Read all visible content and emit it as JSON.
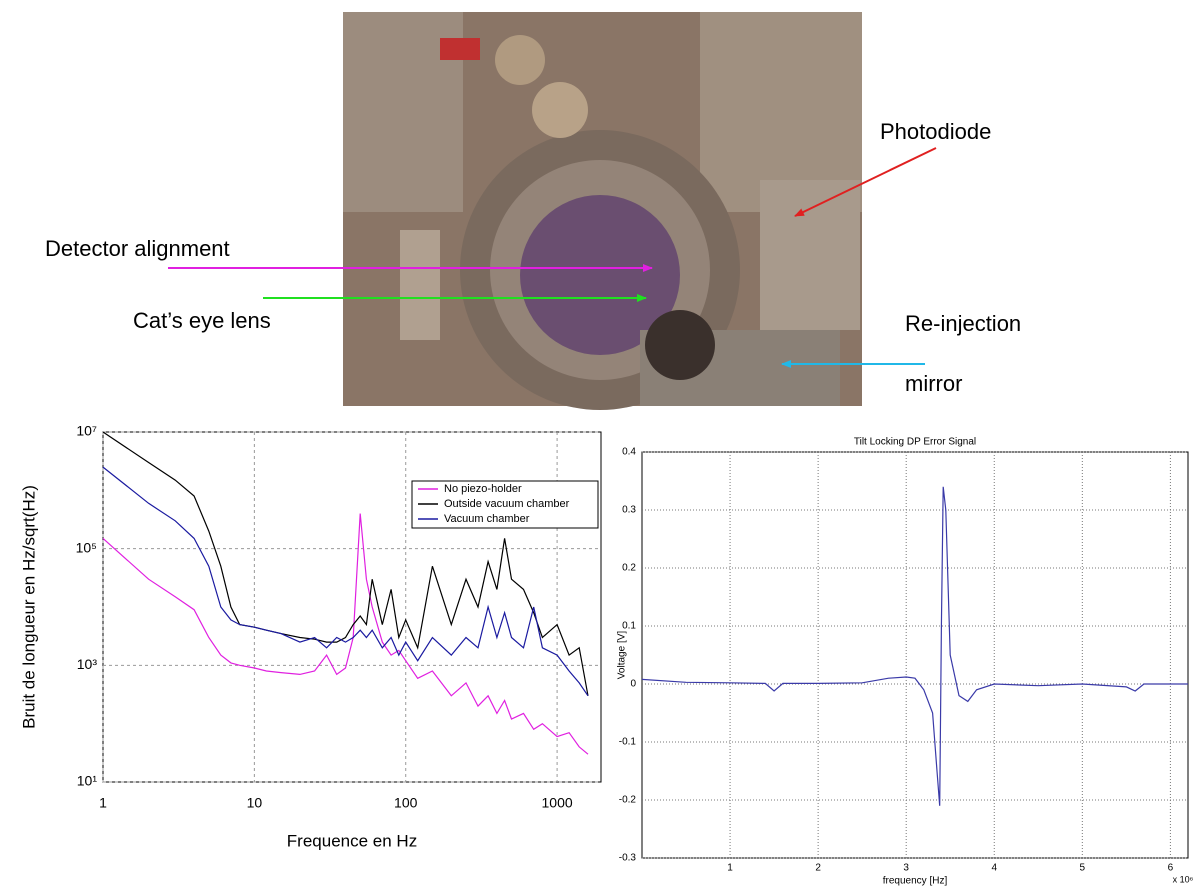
{
  "annotations": [
    "Photodiode",
    "Detector alignment",
    "Cat’s eye lens",
    "Re-injection",
    "mirror"
  ],
  "chart_data": [
    {
      "type": "line",
      "log_x": true,
      "log_y": true,
      "grid": true,
      "legend": "upper right",
      "xlabel": "Frequence en Hz",
      "ylabel": "Bruit de longueur en Hz/sqrt(Hz)",
      "x": [
        1,
        2,
        3,
        4,
        5,
        6,
        7,
        8,
        10,
        12,
        15,
        20,
        25,
        30,
        35,
        40,
        45,
        50,
        55,
        60,
        70,
        80,
        90,
        100,
        120,
        150,
        200,
        250,
        300,
        350,
        400,
        450,
        500,
        600,
        700,
        800,
        1000,
        1200,
        1400,
        1600
      ],
      "xlim": [
        1,
        1950
      ],
      "xticks": [
        1,
        10,
        100,
        1000
      ],
      "ylim": [
        10,
        10000000
      ],
      "yticks": [
        {
          "value": 10,
          "label": "10¹"
        },
        {
          "value": 1000,
          "label": "10³"
        },
        {
          "value": 100000,
          "label": "10⁵"
        },
        {
          "value": 10000000,
          "label": "10⁷"
        }
      ],
      "series": [
        {
          "name": "No piezo-holder",
          "color": "#e020e0",
          "values": [
            150000,
            30000,
            15000,
            9000,
            3000,
            1500,
            1100,
            1000,
            900,
            800,
            750,
            700,
            800,
            1500,
            700,
            900,
            3000,
            400000,
            30000,
            10000,
            2500,
            1500,
            1800,
            1200,
            600,
            800,
            300,
            500,
            200,
            300,
            150,
            250,
            120,
            150,
            80,
            100,
            60,
            70,
            40,
            30
          ]
        },
        {
          "name": "Outside vacuum chamber",
          "color": "#000000",
          "values": [
            10000000,
            3000000,
            1500000,
            800000,
            200000,
            50000,
            10000,
            5000,
            4500,
            4000,
            3500,
            3000,
            2800,
            2500,
            2500,
            3000,
            5000,
            7000,
            5000,
            30000,
            5000,
            20000,
            3000,
            6000,
            2000,
            50000,
            5000,
            30000,
            10000,
            60000,
            20000,
            150000,
            30000,
            20000,
            8000,
            3000,
            5000,
            1500,
            2000,
            300
          ]
        },
        {
          "name": "Vacuum chamber",
          "color": "#1a1aa0",
          "values": [
            2500000,
            600000,
            300000,
            150000,
            50000,
            10000,
            6000,
            5000,
            4500,
            4000,
            3500,
            2500,
            3000,
            2000,
            3000,
            2500,
            3000,
            4000,
            3000,
            4000,
            2000,
            3000,
            1500,
            2500,
            1200,
            3000,
            1500,
            3000,
            2000,
            10000,
            3000,
            8000,
            3000,
            2000,
            10000,
            2000,
            1500,
            800,
            500,
            300
          ]
        }
      ]
    },
    {
      "type": "line",
      "grid": true,
      "title": "Tilt Locking DP Error Signal",
      "xlabel": "frequency [Hz]",
      "ylabel": "Voltage [V]",
      "x_multiplier": "x 10⁶",
      "x": [
        0,
        0.5,
        1,
        1.4,
        1.5,
        1.6,
        2,
        2.5,
        2.8,
        3.0,
        3.1,
        3.2,
        3.3,
        3.35,
        3.38,
        3.4,
        3.42,
        3.45,
        3.5,
        3.6,
        3.7,
        3.8,
        4,
        4.5,
        5,
        5.5,
        5.6,
        5.7,
        6,
        6.2
      ],
      "xlim": [
        0,
        6.2
      ],
      "xticks": [
        1,
        2,
        3,
        4,
        5,
        6
      ],
      "ylim": [
        -0.3,
        0.4
      ],
      "yticks": [
        -0.3,
        -0.2,
        -0.1,
        0,
        0.1,
        0.2,
        0.3,
        0.4
      ],
      "series": [
        {
          "color": "#3a3aa8",
          "values": [
            0.008,
            0.003,
            0.002,
            0.001,
            -0.012,
            0.001,
            0.001,
            0.002,
            0.01,
            0.012,
            0.01,
            -0.01,
            -0.05,
            -0.15,
            -0.21,
            0.1,
            0.34,
            0.3,
            0.05,
            -0.02,
            -0.03,
            -0.01,
            0,
            -0.003,
            0,
            -0.005,
            -0.012,
            0,
            0,
            0
          ]
        }
      ]
    }
  ]
}
